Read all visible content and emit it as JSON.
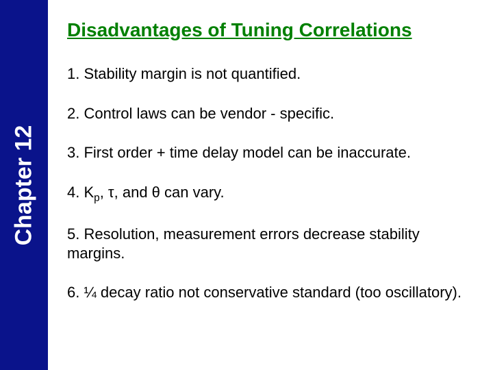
{
  "sidebar": {
    "label": "Chapter 12",
    "bg_color": "#0a138b",
    "text_color": "#ffffff"
  },
  "title": {
    "text": "Disadvantages of Tuning Correlations",
    "color": "#008000"
  },
  "items": [
    "1.  Stability margin is not quantified.",
    "2.  Control laws can be vendor - specific.",
    "3.  First order + time delay model can be inaccurate.",
    "4.  K_p, τ, and θ can vary.",
    "5.  Resolution, measurement errors decrease stability margins.",
    "6.  ¼ decay ratio not conservative standard (too oscillatory)."
  ]
}
